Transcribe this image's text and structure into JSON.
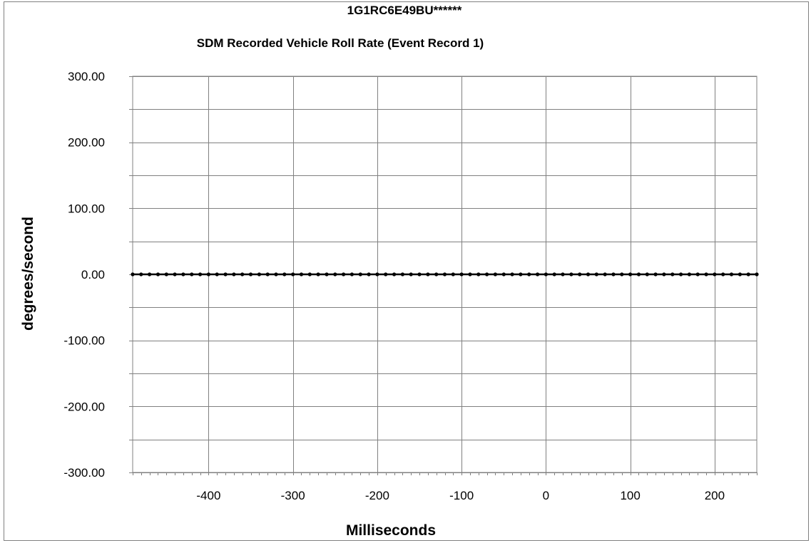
{
  "chart_data": {
    "type": "line",
    "title": "1G1RC6E49BU******",
    "subtitle": "SDM Recorded Vehicle Roll Rate (Event Record 1)",
    "xlabel": "Milliseconds",
    "ylabel": "degrees/second",
    "xlim": [
      -490,
      250
    ],
    "ylim": [
      -300,
      300
    ],
    "x_ticks": [
      -400,
      -300,
      -200,
      -100,
      0,
      100,
      200
    ],
    "x_tick_labels": [
      "-400",
      "-300",
      "-200",
      "-100",
      "0",
      "100",
      "200"
    ],
    "y_ticks": [
      300,
      200,
      100,
      0,
      -100,
      -200,
      -300
    ],
    "y_tick_labels": [
      "300.00",
      "200.00",
      "100.00",
      "0.00",
      "-100.00",
      "-200.00",
      "-300.00"
    ],
    "grid": true,
    "series": [
      {
        "color": "#000000",
        "x": [
          -490,
          -480,
          -470,
          -460,
          -450,
          -440,
          -430,
          -420,
          -410,
          -400,
          -390,
          -380,
          -370,
          -360,
          -350,
          -340,
          -330,
          -320,
          -310,
          -300,
          -290,
          -280,
          -270,
          -260,
          -250,
          -240,
          -230,
          -220,
          -210,
          -200,
          -190,
          -180,
          -170,
          -160,
          -150,
          -140,
          -130,
          -120,
          -110,
          -100,
          -90,
          -80,
          -70,
          -60,
          -50,
          -40,
          -30,
          -20,
          -10,
          0,
          10,
          20,
          30,
          40,
          50,
          60,
          70,
          80,
          90,
          100,
          110,
          120,
          130,
          140,
          150,
          160,
          170,
          180,
          190,
          200,
          210,
          220,
          230,
          240,
          250
        ],
        "y": [
          0,
          0,
          0,
          0,
          0,
          0,
          0,
          0,
          0,
          0,
          0,
          0,
          0,
          0,
          0,
          0,
          0,
          0,
          0,
          0,
          0,
          0,
          0,
          0,
          0,
          0,
          0,
          0,
          0,
          0,
          0,
          0,
          0,
          0,
          0,
          0,
          0,
          0,
          0,
          0,
          0,
          0,
          0,
          0,
          0,
          0,
          0,
          0,
          0,
          0,
          0,
          0,
          0,
          0,
          0,
          0,
          0,
          0,
          0,
          0,
          0,
          0,
          0,
          0,
          0,
          0,
          0,
          0,
          0,
          0,
          0,
          0,
          0,
          0,
          0
        ]
      }
    ]
  }
}
